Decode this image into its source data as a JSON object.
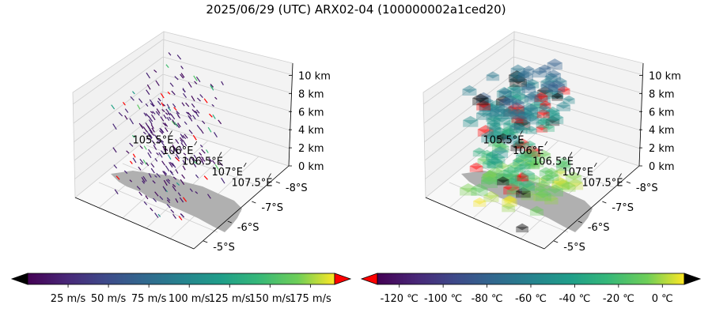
{
  "title": "2025/06/29 (UTC) ARX02-04 (100000002a1ced20)",
  "chart_data": [
    {
      "type": "3d-quiver",
      "title": "",
      "x_ticks": [
        "105.5°E",
        "106°E",
        "106.5°E",
        "107°E",
        "107.5°E"
      ],
      "y_ticks": [
        "-5°S",
        "-6°S",
        "-7°S",
        "-8°S"
      ],
      "z_ticks": [
        "0 km",
        "2 km",
        "4 km",
        "6 km",
        "8 km",
        "10 km"
      ],
      "xlim": [
        105.3,
        107.7
      ],
      "ylim": [
        -8.2,
        -4.6
      ],
      "zlim": [
        0,
        11
      ],
      "colorbar": {
        "cmap": "viridis",
        "ticks": [
          "25 m/s",
          "50 m/s",
          "75 m/s",
          "100 m/s",
          "125 m/s",
          "150 m/s",
          "175 m/s"
        ],
        "tick_values": [
          25,
          50,
          75,
          100,
          125,
          150,
          175
        ],
        "range": [
          0,
          190
        ],
        "extend": "both",
        "under_color": "#000000",
        "over_color": "#ff0000"
      },
      "land_color": "#b0b0b0",
      "wind_direction_deg": 285
    },
    {
      "type": "3d-voxel",
      "title": "",
      "x_ticks": [
        "105.5°E",
        "106°E",
        "106.5°E",
        "107°E",
        "107.5°E"
      ],
      "y_ticks": [
        "-5°S",
        "-6°S",
        "-7°S",
        "-8°S"
      ],
      "z_ticks": [
        "0 km",
        "2 km",
        "4 km",
        "6 km",
        "8 km",
        "10 km"
      ],
      "xlim": [
        105.3,
        107.7
      ],
      "ylim": [
        -8.2,
        -4.6
      ],
      "zlim": [
        0,
        11
      ],
      "colorbar": {
        "cmap": "viridis",
        "ticks": [
          "-120 ℃",
          "-100 ℃",
          "-80 ℃",
          "-60 ℃",
          "-40 ℃",
          "-20 ℃",
          "0 ℃"
        ],
        "tick_values": [
          -120,
          -100,
          -80,
          -60,
          -40,
          -20,
          0
        ],
        "range": [
          -130,
          10
        ],
        "extend": "both",
        "under_color": "#ff0000",
        "over_color": "#000000"
      },
      "land_color": "#b0b0b0"
    }
  ],
  "colors": {
    "axis": "#000000",
    "grid": "#d0d0d0",
    "land": "#b0b0b0"
  }
}
